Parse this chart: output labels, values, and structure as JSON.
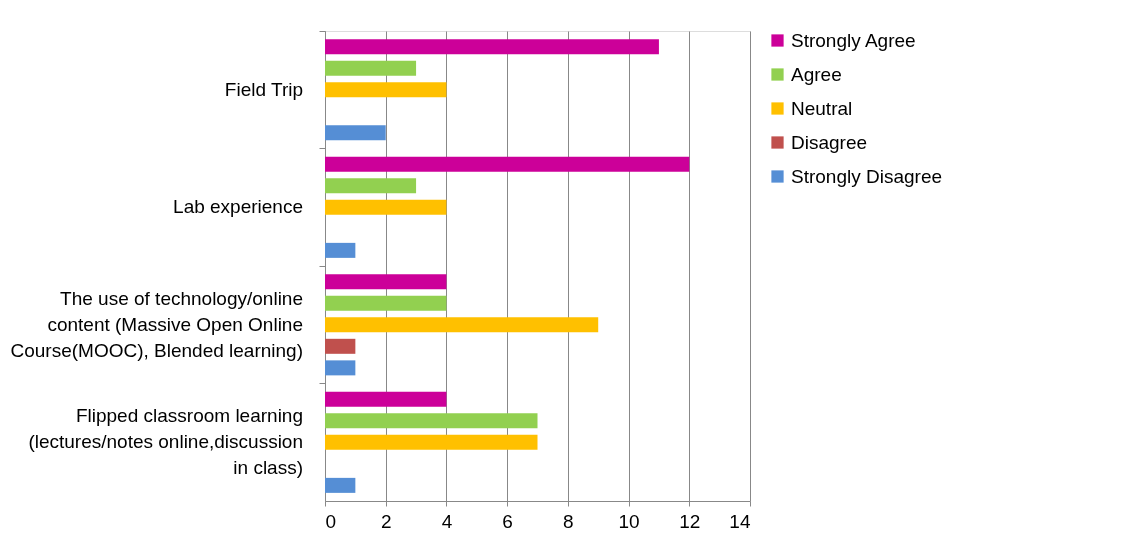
{
  "chart_data": {
    "type": "bar",
    "orientation": "horizontal",
    "categories": [
      "Field Trip",
      "Lab experience",
      "The use of technology/online content (Massive Open Online Course(MOOC), Blended learning)",
      "Flipped classroom learning (lectures/notes online,discussion in class)"
    ],
    "series": [
      {
        "name": "Strongly Agree",
        "color": "#cc0099",
        "values": [
          11,
          12,
          4,
          4
        ]
      },
      {
        "name": "Agree",
        "color": "#92d050",
        "values": [
          3,
          3,
          4,
          7
        ]
      },
      {
        "name": "Neutral",
        "color": "#ffc000",
        "values": [
          4,
          4,
          9,
          7
        ]
      },
      {
        "name": "Disagree",
        "color": "#c0504d",
        "values": [
          0,
          0,
          1,
          0
        ]
      },
      {
        "name": "Strongly Disagree",
        "color": "#558ed5",
        "values": [
          2,
          1,
          1,
          1
        ]
      }
    ],
    "xlim": [
      0,
      14
    ],
    "xticks": [
      0,
      2,
      4,
      6,
      8,
      10,
      12,
      14
    ],
    "grid": "x",
    "legend": "right"
  }
}
